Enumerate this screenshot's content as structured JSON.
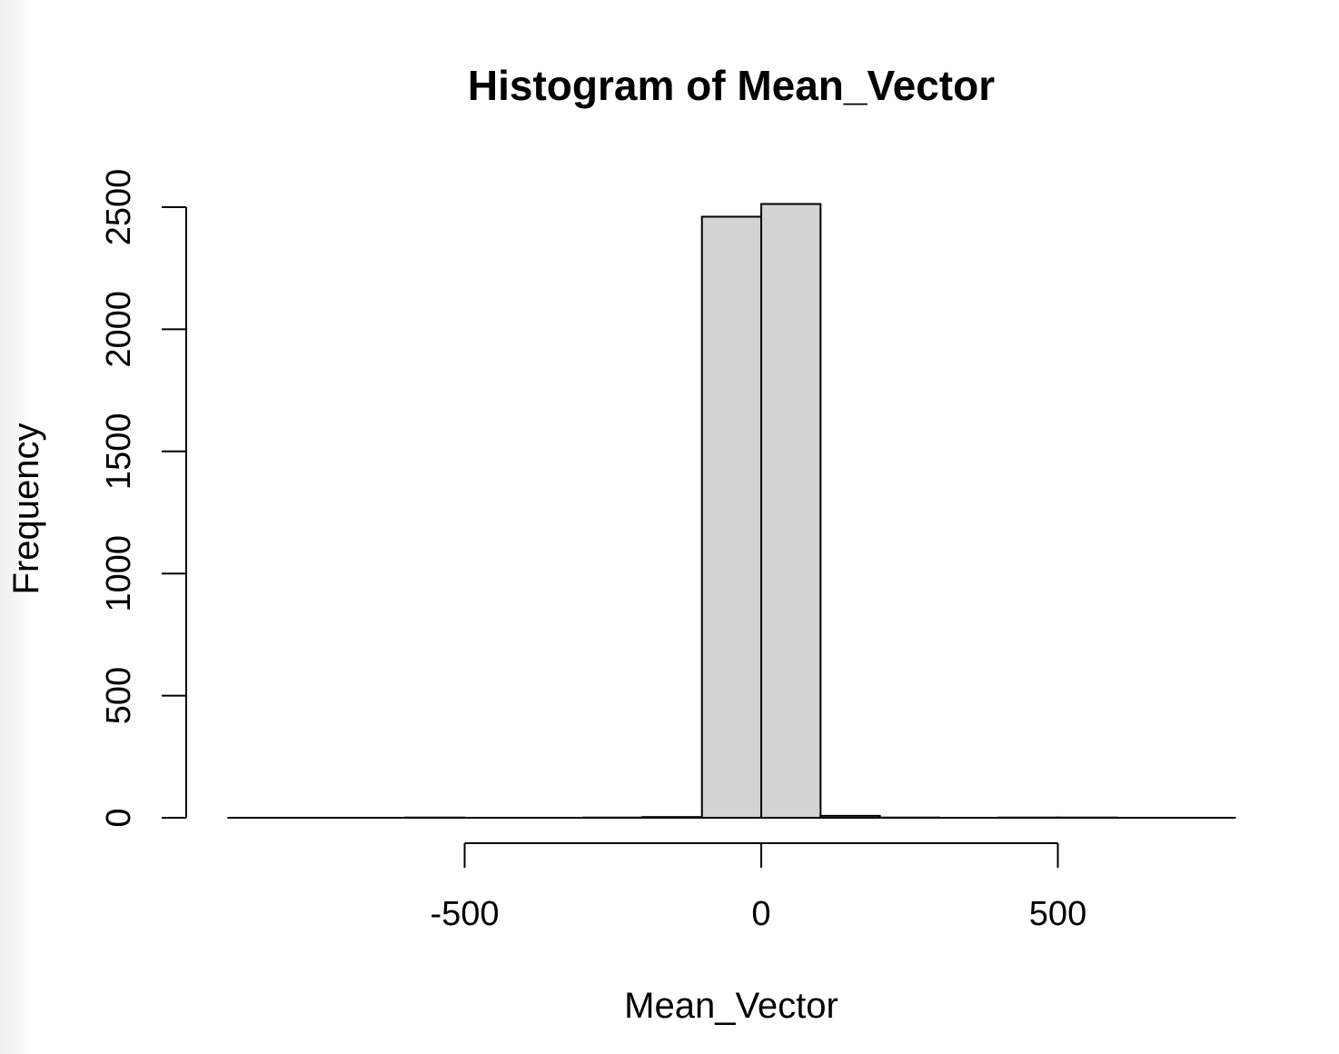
{
  "chart_data": {
    "type": "bar",
    "subtype": "histogram",
    "title": "Histogram of Mean_Vector",
    "xlabel": "Mean_Vector",
    "ylabel": "Frequency",
    "bin_width": 100,
    "bins": [
      {
        "start": -900,
        "end": -800,
        "count": 0
      },
      {
        "start": -800,
        "end": -700,
        "count": 0
      },
      {
        "start": -700,
        "end": -600,
        "count": 0
      },
      {
        "start": -600,
        "end": -500,
        "count": 1
      },
      {
        "start": -500,
        "end": -400,
        "count": 0
      },
      {
        "start": -400,
        "end": -300,
        "count": 0
      },
      {
        "start": -300,
        "end": -200,
        "count": 1
      },
      {
        "start": -200,
        "end": -100,
        "count": 3
      },
      {
        "start": -100,
        "end": 0,
        "count": 2461
      },
      {
        "start": 0,
        "end": 100,
        "count": 2513
      },
      {
        "start": 100,
        "end": 200,
        "count": 8
      },
      {
        "start": 200,
        "end": 300,
        "count": 1
      },
      {
        "start": 300,
        "end": 400,
        "count": 0
      },
      {
        "start": 400,
        "end": 500,
        "count": 1
      },
      {
        "start": 500,
        "end": 600,
        "count": 1
      },
      {
        "start": 600,
        "end": 700,
        "count": 0
      },
      {
        "start": 700,
        "end": 800,
        "count": 0
      }
    ],
    "xticks": [
      -500,
      0,
      500
    ],
    "yticks": [
      0,
      500,
      1000,
      1500,
      2000,
      2500
    ],
    "xlim": [
      -900,
      800
    ],
    "ylim": [
      0,
      2500
    ],
    "grid": false,
    "bar_fill": "#d3d3d3",
    "bar_stroke": "#000000"
  }
}
